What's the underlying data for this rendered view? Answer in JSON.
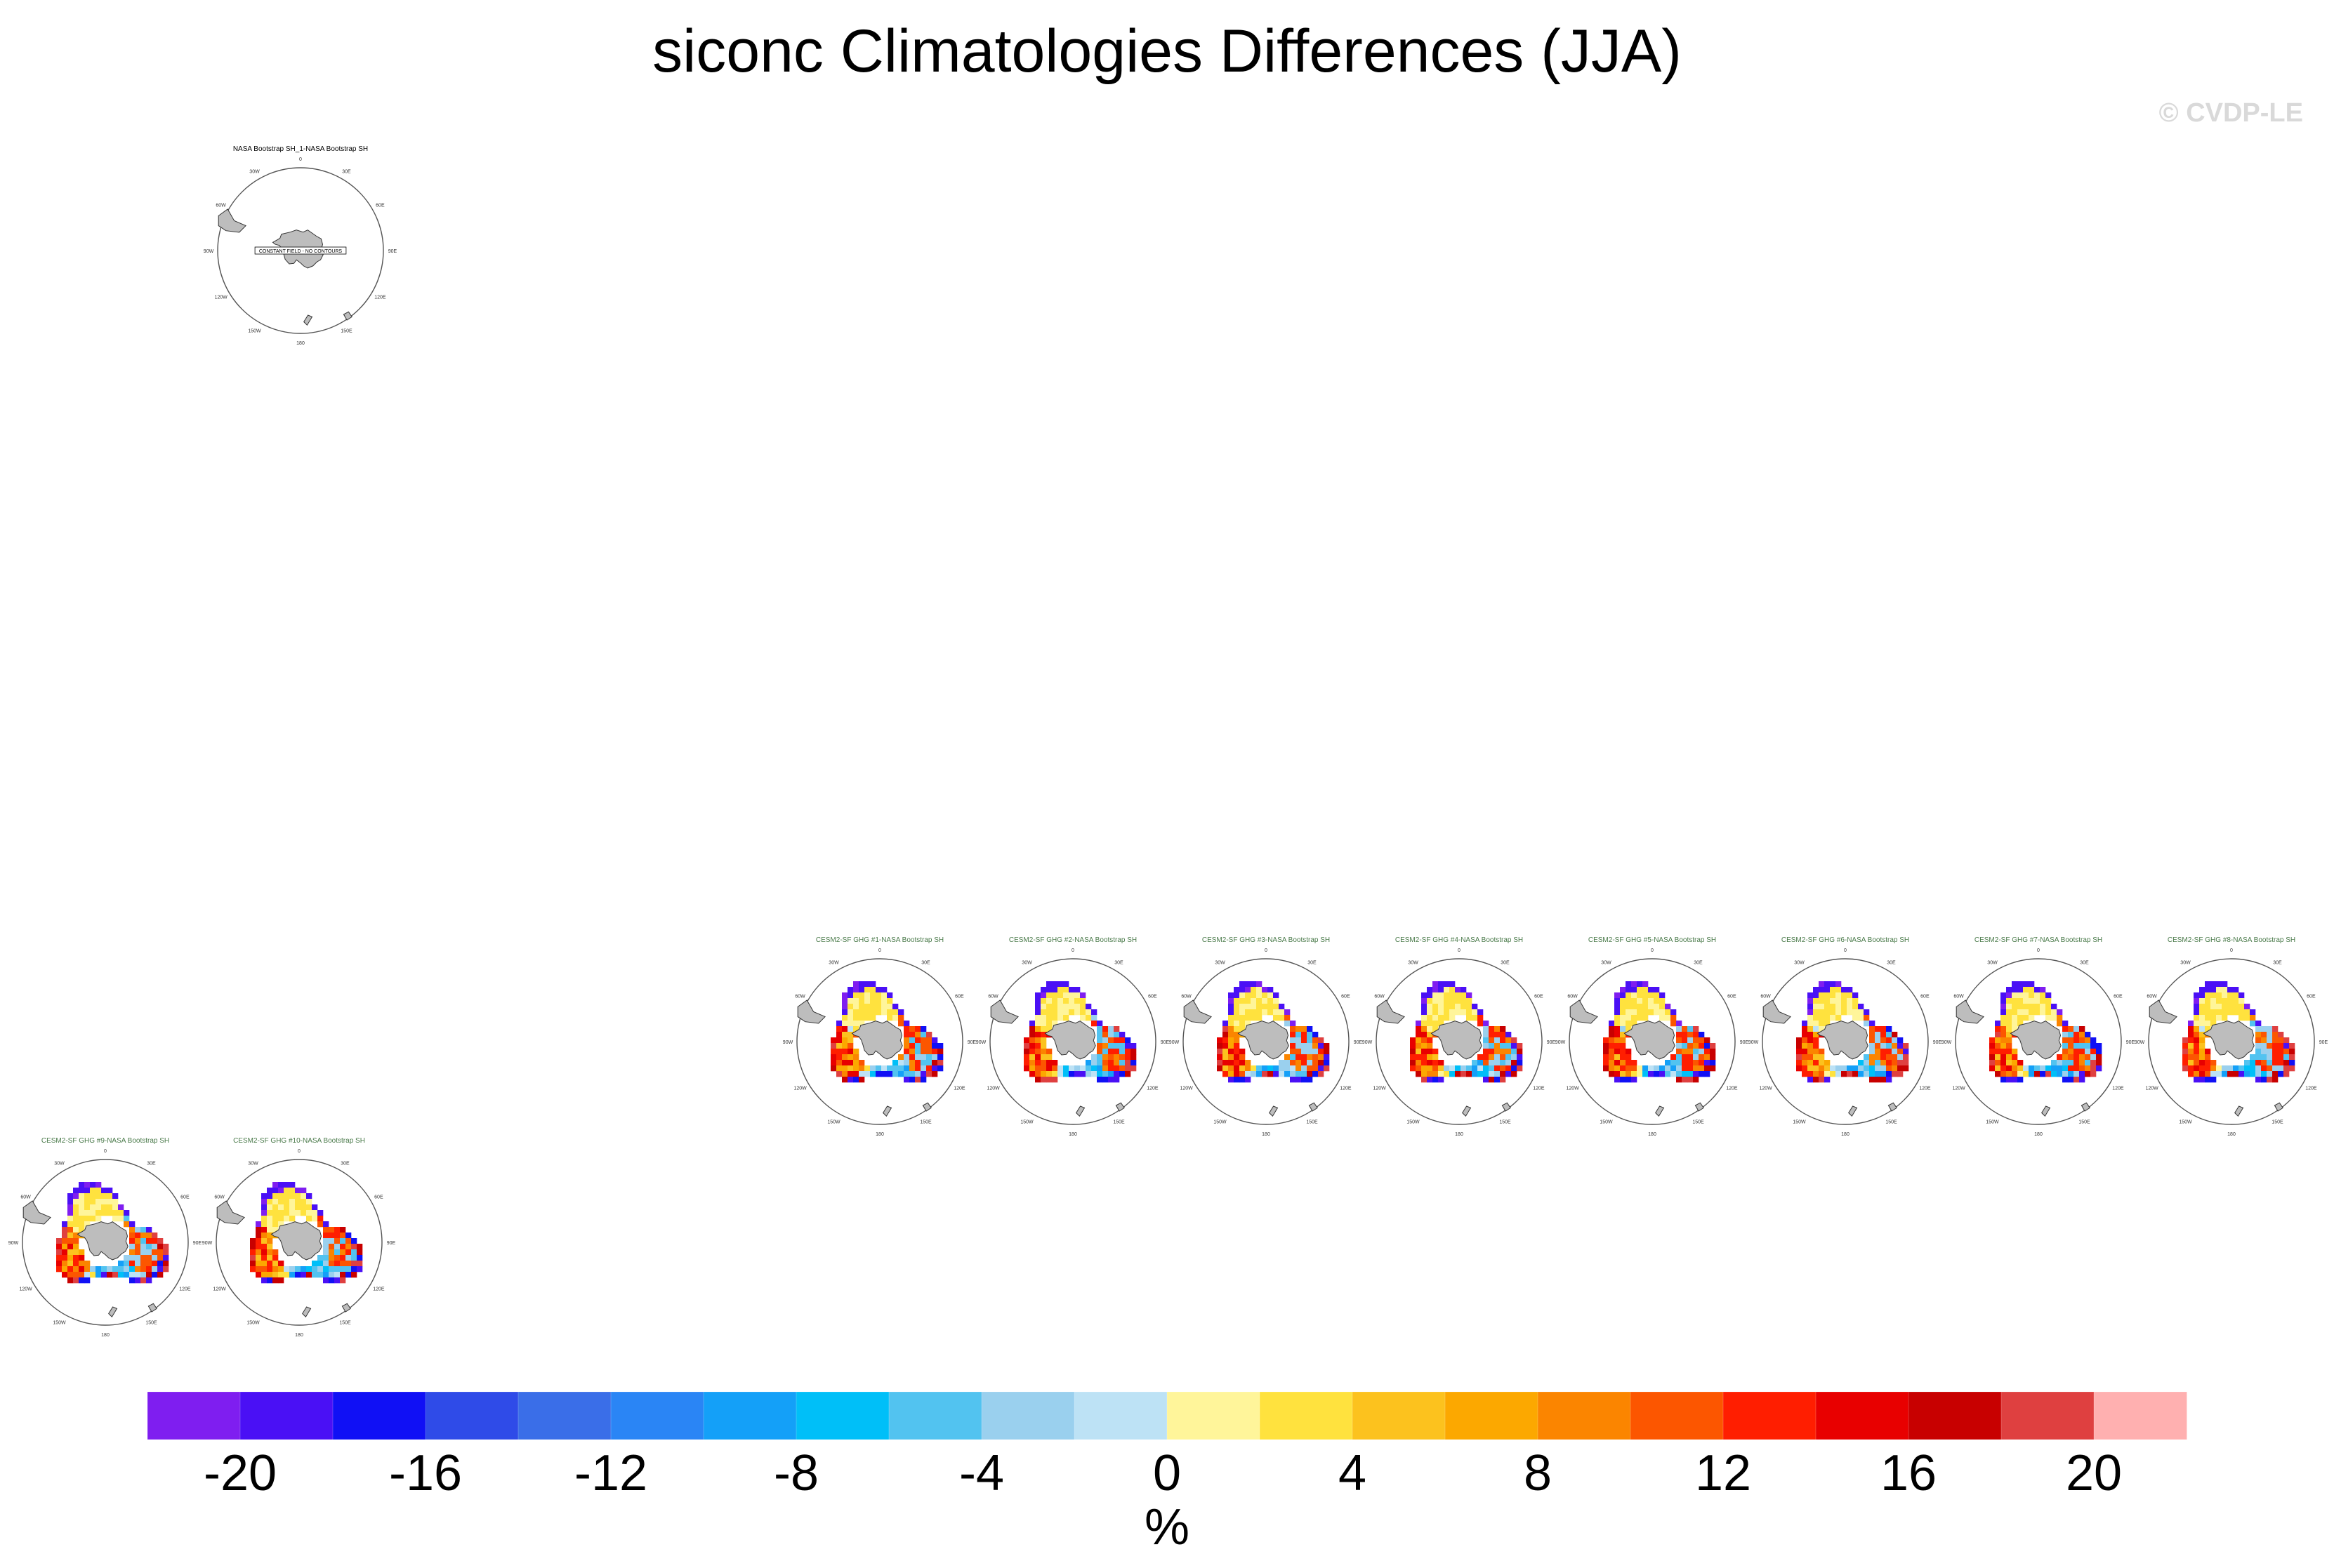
{
  "title": "siconc Climatologies Differences (JJA)",
  "watermark": "© CVDP-LE",
  "chart_data": {
    "type": "heatmap",
    "projection": "south polar stereographic",
    "season": "JJA",
    "variable": "siconc",
    "lon_labels": [
      "0",
      "30E",
      "60E",
      "90E",
      "120E",
      "150E",
      "180",
      "150W",
      "120W",
      "90W",
      "60W",
      "30W"
    ],
    "panels": [
      {
        "title": "NASA Bootstrap SH_1-NASA Bootstrap SH",
        "kind": "zero"
      },
      {
        "title": "CESM2-SF GHG #1-NASA Bootstrap SH",
        "kind": "diff"
      },
      {
        "title": "CESM2-SF GHG #2-NASA Bootstrap SH",
        "kind": "diff"
      },
      {
        "title": "CESM2-SF GHG #3-NASA Bootstrap SH",
        "kind": "diff"
      },
      {
        "title": "CESM2-SF GHG #4-NASA Bootstrap SH",
        "kind": "diff"
      },
      {
        "title": "CESM2-SF GHG #5-NASA Bootstrap SH",
        "kind": "diff"
      },
      {
        "title": "CESM2-SF GHG #6-NASA Bootstrap SH",
        "kind": "diff"
      },
      {
        "title": "CESM2-SF GHG #7-NASA Bootstrap SH",
        "kind": "diff"
      },
      {
        "title": "CESM2-SF GHG #8-NASA Bootstrap SH",
        "kind": "diff"
      },
      {
        "title": "CESM2-SF GHG #9-NASA Bootstrap SH",
        "kind": "diff"
      },
      {
        "title": "CESM2-SF GHG #10-NASA Bootstrap SH",
        "kind": "diff"
      }
    ],
    "zero_panel_label": "CONSTANT FIELD - NO CONTOURS",
    "colorbar": {
      "label": "%",
      "min": -22,
      "max": 22,
      "bin_width": 2,
      "tick_labels": [
        "-20",
        "-16",
        "-12",
        "-8",
        "-4",
        "0",
        "4",
        "8",
        "12",
        "16",
        "20"
      ],
      "tick_values": [
        -20,
        -16,
        -12,
        -8,
        -4,
        0,
        4,
        8,
        12,
        16,
        20
      ],
      "colors": [
        "#7f1ef0",
        "#4a10f5",
        "#1010f5",
        "#2f4be8",
        "#3a6ee8",
        "#2a85f5",
        "#14a0f8",
        "#00bff8",
        "#52c3f0",
        "#9ad0ee",
        "#bde2f5",
        "#fff59a",
        "#ffe23e",
        "#fcc21e",
        "#fca800",
        "#fb8500",
        "#fc5600",
        "#ff1e00",
        "#e80000",
        "#c80000",
        "#df4040",
        "#ffb0b0"
      ]
    }
  }
}
